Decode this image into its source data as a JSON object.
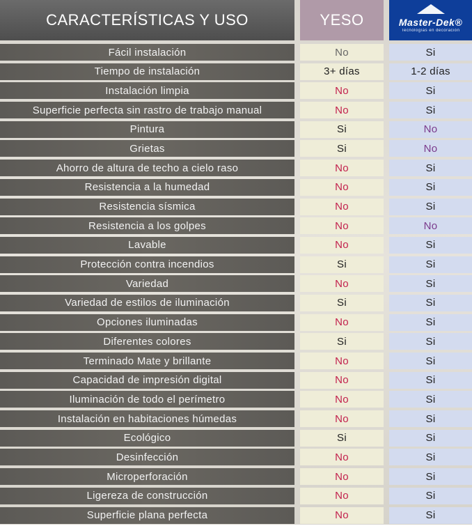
{
  "header": {
    "feature_title": "CARACTERÍSTICAS Y USO",
    "yeso_title": "YESO",
    "logo_name": "Master-Dek®",
    "logo_tagline": "Tecnologías en decoración"
  },
  "rows": [
    {
      "feature": "Fácil instalación",
      "yeso": "No",
      "yeso_style": "no-gray",
      "md": "Si",
      "md_style": "yes"
    },
    {
      "feature": "Tiempo de instalación",
      "yeso": "3+ días",
      "yeso_style": "plain",
      "md": "1-2 días",
      "md_style": "plain"
    },
    {
      "feature": "Instalación limpia",
      "yeso": "No",
      "yeso_style": "no-red",
      "md": "Si",
      "md_style": "yes"
    },
    {
      "feature": "Superficie perfecta sin rastro de trabajo manual",
      "yeso": "No",
      "yeso_style": "no-red",
      "md": "Si",
      "md_style": "yes"
    },
    {
      "feature": "Pintura",
      "yeso": "Si",
      "yeso_style": "yes",
      "md": "No",
      "md_style": "no-purple"
    },
    {
      "feature": "Grietas",
      "yeso": "Si",
      "yeso_style": "yes",
      "md": "No",
      "md_style": "no-purple"
    },
    {
      "feature": "Ahorro de altura de techo a cielo raso",
      "yeso": "No",
      "yeso_style": "no-red",
      "md": "Si",
      "md_style": "yes"
    },
    {
      "feature": "Resistencia a la humedad",
      "yeso": "No",
      "yeso_style": "no-red",
      "md": "Si",
      "md_style": "yes"
    },
    {
      "feature": "Resistencia sísmica",
      "yeso": "No",
      "yeso_style": "no-red",
      "md": "Si",
      "md_style": "yes"
    },
    {
      "feature": "Resistencia a los golpes",
      "yeso": "No",
      "yeso_style": "no-red",
      "md": "No",
      "md_style": "no-purple"
    },
    {
      "feature": "Lavable",
      "yeso": "No",
      "yeso_style": "no-red",
      "md": "Si",
      "md_style": "yes"
    },
    {
      "feature": "Protección contra incendios",
      "yeso": "Si",
      "yeso_style": "yes",
      "md": "Si",
      "md_style": "yes"
    },
    {
      "feature": "Variedad",
      "yeso": "No",
      "yeso_style": "no-red",
      "md": "Si",
      "md_style": "yes"
    },
    {
      "feature": "Variedad de estilos de iluminación",
      "yeso": "Si",
      "yeso_style": "yes",
      "md": "Si",
      "md_style": "yes"
    },
    {
      "feature": "Opciones iluminadas",
      "yeso": "No",
      "yeso_style": "no-red",
      "md": "Si",
      "md_style": "yes"
    },
    {
      "feature": "Diferentes colores",
      "yeso": "Si",
      "yeso_style": "yes",
      "md": "Si",
      "md_style": "yes"
    },
    {
      "feature": "Terminado Mate y brillante",
      "yeso": "No",
      "yeso_style": "no-red",
      "md": "Si",
      "md_style": "yes"
    },
    {
      "feature": "Capacidad de impresión digital",
      "yeso": "No",
      "yeso_style": "no-red",
      "md": "Si",
      "md_style": "yes"
    },
    {
      "feature": "Iluminación de todo el perímetro",
      "yeso": "No",
      "yeso_style": "no-red",
      "md": "Si",
      "md_style": "yes"
    },
    {
      "feature": "Instalación en habitaciones húmedas",
      "yeso": "No",
      "yeso_style": "no-red",
      "md": "Si",
      "md_style": "yes"
    },
    {
      "feature": "Ecológico",
      "yeso": "Si",
      "yeso_style": "yes",
      "md": "Si",
      "md_style": "yes"
    },
    {
      "feature": "Desinfección",
      "yeso": "No",
      "yeso_style": "no-red",
      "md": "Si",
      "md_style": "yes"
    },
    {
      "feature": "Microperforación",
      "yeso": "No",
      "yeso_style": "no-red",
      "md": "Si",
      "md_style": "yes"
    },
    {
      "feature": "Ligereza de construcción",
      "yeso": "No",
      "yeso_style": "no-red",
      "md": "Si",
      "md_style": "yes"
    },
    {
      "feature": "Superficie plana perfecta",
      "yeso": "No",
      "yeso_style": "no-red",
      "md": "Si",
      "md_style": "yes"
    }
  ]
}
